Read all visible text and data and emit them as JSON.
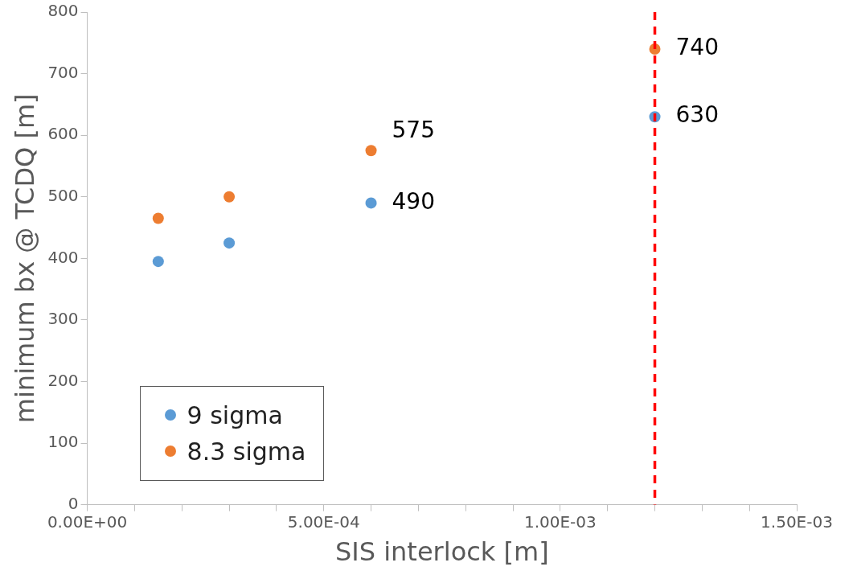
{
  "chart_data": {
    "type": "scatter",
    "xlabel": "SIS interlock [m]",
    "ylabel": "minimum bx @ TCDQ [m]",
    "x": [
      0.00015,
      0.0003,
      0.0006,
      0.0012
    ],
    "series": [
      {
        "name": "9 sigma",
        "color": "#5b9bd5",
        "values": [
          395,
          425,
          490,
          630
        ],
        "value_labels": [
          null,
          null,
          "490",
          "630"
        ]
      },
      {
        "name": "8.3 sigma",
        "color": "#ed7d31",
        "values": [
          465,
          500,
          575,
          740
        ],
        "value_labels": [
          null,
          null,
          "575",
          "740"
        ]
      }
    ],
    "xlim": [
      0,
      0.0015
    ],
    "xticks": [
      {
        "value": 0,
        "label": "0.00E+00"
      },
      {
        "value": 0.0001,
        "label": null
      },
      {
        "value": 0.0002,
        "label": null
      },
      {
        "value": 0.0003,
        "label": null
      },
      {
        "value": 0.0004,
        "label": null
      },
      {
        "value": 0.0005,
        "label": "5.00E-04"
      },
      {
        "value": 0.0006,
        "label": null
      },
      {
        "value": 0.0007,
        "label": null
      },
      {
        "value": 0.0008,
        "label": null
      },
      {
        "value": 0.0009,
        "label": null
      },
      {
        "value": 0.001,
        "label": "1.00E-03"
      },
      {
        "value": 0.0011,
        "label": null
      },
      {
        "value": 0.0012,
        "label": null
      },
      {
        "value": 0.0013,
        "label": null
      },
      {
        "value": 0.0014,
        "label": null
      },
      {
        "value": 0.0015,
        "label": "1.50E-03"
      }
    ],
    "ylim": [
      0,
      800
    ],
    "yticks": [
      0,
      100,
      200,
      300,
      400,
      500,
      600,
      700,
      800
    ],
    "ref_lines": [
      {
        "axis": "x",
        "value": 0.0012,
        "color": "#ff0000",
        "line_style": "dashed"
      }
    ],
    "grid": false,
    "legend": "bottom left",
    "marker": "circle"
  }
}
